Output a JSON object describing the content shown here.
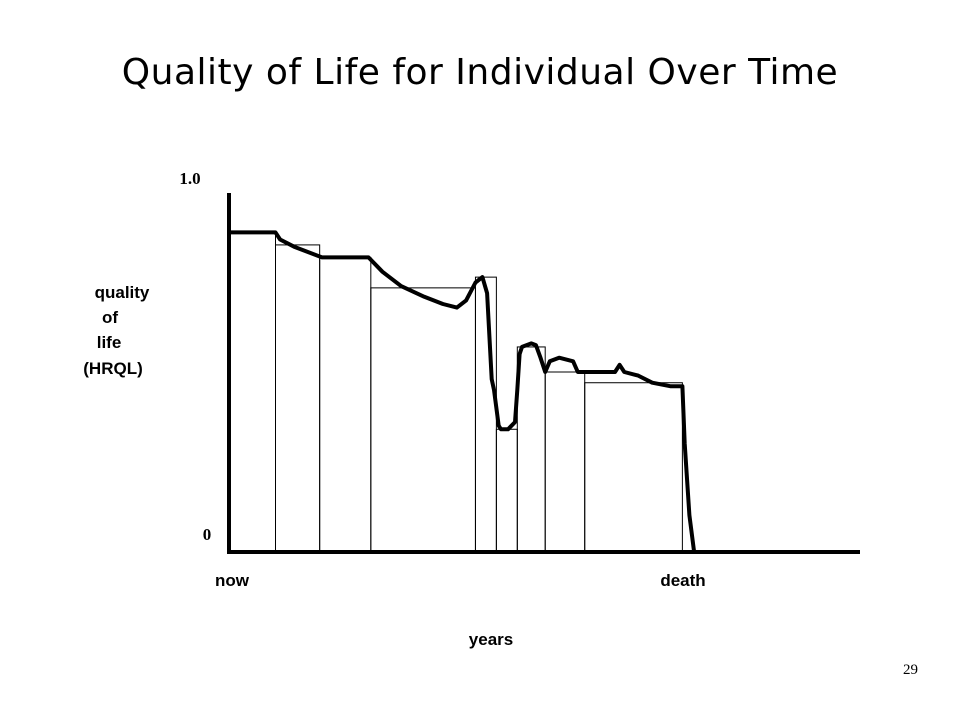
{
  "slide": {
    "title": "Quality of Life for Individual Over Time",
    "page_number": "29"
  },
  "chart_data": {
    "type": "line",
    "title": "Quality of Life for Individual Over Time",
    "xlabel": "years",
    "ylabel_lines": [
      "quality",
      "of",
      "life",
      "(HRQL)"
    ],
    "x_tick_labels": [
      "now",
      "death"
    ],
    "y_tick_labels": [
      "1.0",
      "0"
    ],
    "xlim": [
      0,
      1.35
    ],
    "ylim": [
      0,
      1.0
    ],
    "grid": false,
    "notes": "x expressed as fraction of time from now (0) to death (1); y is HRQL on 0–1 scale",
    "step_segments": [
      {
        "x0": 0.0,
        "x1": 0.1,
        "y": 0.89
      },
      {
        "x0": 0.1,
        "x1": 0.195,
        "y": 0.855
      },
      {
        "x0": 0.195,
        "x1": 0.305,
        "y": 0.82
      },
      {
        "x0": 0.305,
        "x1": 0.53,
        "y": 0.735
      },
      {
        "x0": 0.53,
        "x1": 0.575,
        "y": 0.765
      },
      {
        "x0": 0.575,
        "x1": 0.62,
        "y": 0.34
      },
      {
        "x0": 0.62,
        "x1": 0.68,
        "y": 0.57
      },
      {
        "x0": 0.68,
        "x1": 0.765,
        "y": 0.5
      },
      {
        "x0": 0.765,
        "x1": 0.975,
        "y": 0.47
      }
    ],
    "curve": {
      "x": [
        0.0,
        0.1,
        0.11,
        0.14,
        0.2,
        0.3,
        0.33,
        0.37,
        0.42,
        0.46,
        0.49,
        0.51,
        0.53,
        0.545,
        0.555,
        0.565,
        0.57,
        0.58,
        0.585,
        0.6,
        0.615,
        0.62,
        0.625,
        0.63,
        0.65,
        0.66,
        0.67,
        0.68,
        0.69,
        0.71,
        0.74,
        0.75,
        0.79,
        0.83,
        0.84,
        0.85,
        0.88,
        0.91,
        0.95,
        0.975,
        0.98,
        0.99,
        1.0
      ],
      "y": [
        0.89,
        0.89,
        0.87,
        0.85,
        0.82,
        0.82,
        0.78,
        0.74,
        0.71,
        0.69,
        0.68,
        0.7,
        0.75,
        0.765,
        0.72,
        0.48,
        0.45,
        0.35,
        0.34,
        0.34,
        0.36,
        0.45,
        0.55,
        0.57,
        0.58,
        0.575,
        0.54,
        0.5,
        0.53,
        0.54,
        0.53,
        0.5,
        0.5,
        0.5,
        0.52,
        0.5,
        0.49,
        0.47,
        0.46,
        0.46,
        0.3,
        0.1,
        0.0
      ]
    }
  }
}
